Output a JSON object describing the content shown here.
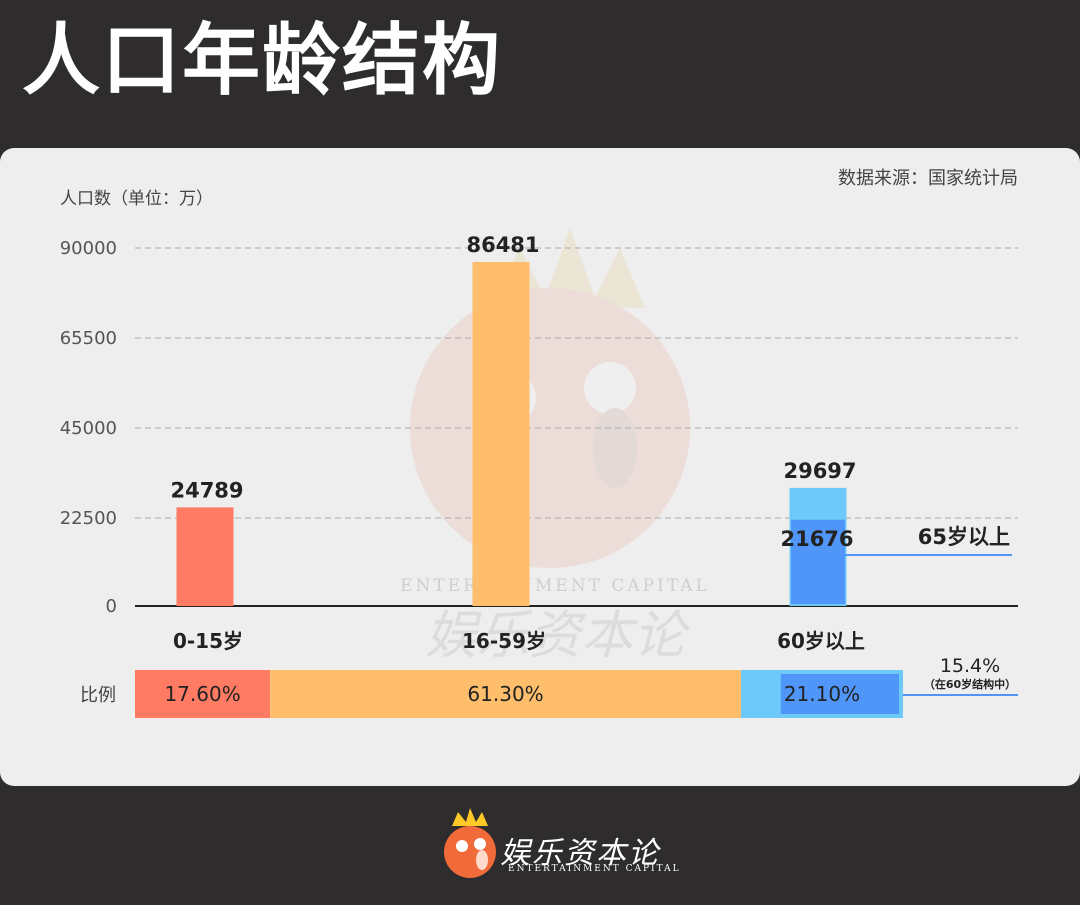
{
  "page": {
    "title": "人口年龄结构"
  },
  "chart_data": {
    "type": "bar",
    "source": "数据来源：国家统计局",
    "ylabel": "人口数（单位：万）",
    "yticks": [
      0,
      22500,
      45000,
      65500,
      90000
    ],
    "ylim": [
      0,
      90000
    ],
    "categories": [
      "0-15岁",
      "16-59岁",
      "60岁以上"
    ],
    "values": [
      24789,
      86481,
      29697
    ],
    "colors": [
      "#ff7b63",
      "#ffbe6b",
      "#6dcaf8"
    ],
    "sub_bar": {
      "category": "60岁以上",
      "label": "65岁以上",
      "value": 21676,
      "color": "#4f96f8"
    },
    "ratio": {
      "label": "比例",
      "segments": [
        {
          "value": 17.6,
          "text": "17.60%",
          "color": "#ff7b63"
        },
        {
          "value": 61.3,
          "text": "61.30%",
          "color": "#ffbe6b"
        },
        {
          "value": 21.1,
          "text": "21.10%",
          "color": "#6dcaf8"
        }
      ],
      "inner": {
        "value": 15.4,
        "text": "15.4%",
        "note": "（在60岁结构中）",
        "color": "#4f96f8"
      }
    }
  },
  "watermark": {
    "line1": "ENTERTAINMENT CAPITAL",
    "line2": "娱乐资本论"
  },
  "footer": {
    "brand": "娱乐资本论",
    "sub": "ENTERTAINMENT CAPITAL"
  },
  "colors": {
    "background": "#2e2c2c",
    "panel": "#eeeeee",
    "accent_line": "#4f96f8"
  }
}
